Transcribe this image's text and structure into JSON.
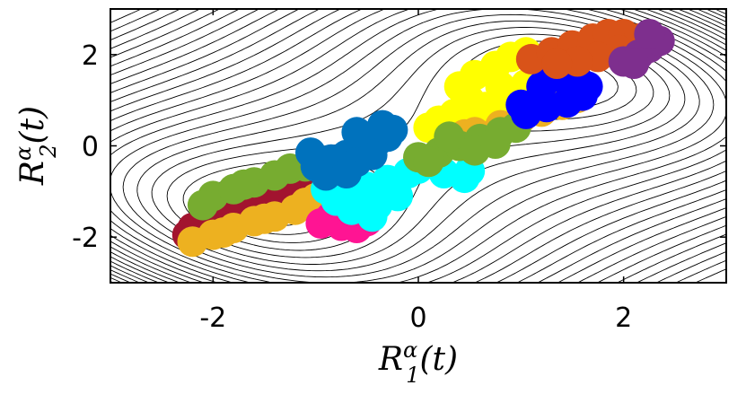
{
  "chart_data": {
    "type": "scatter",
    "title": "",
    "xlabel": "R_1^α(t)",
    "ylabel": "R_2^α(t)",
    "xlim": [
      -3,
      3
    ],
    "ylim": [
      -3,
      3
    ],
    "xticks": [
      -2,
      0,
      2
    ],
    "yticks": [
      -2,
      0,
      2
    ],
    "xtick_labels": [
      "-2",
      "0",
      "2"
    ],
    "ytick_labels": [
      "-2",
      "0",
      "2"
    ],
    "grid": false,
    "legend": "none",
    "background": "contour lines of a double-well potential with minima near (-1.6,-1.3) and (1.6,1.3)",
    "contours": {
      "color": "#000000",
      "levels": 24
    },
    "clusters": [
      {
        "color": "#A2142F",
        "points": [
          [
            -2.2,
            -1.8
          ],
          [
            -2.05,
            -1.55
          ],
          [
            -1.9,
            -1.35
          ],
          [
            -1.75,
            -1.2
          ],
          [
            -1.55,
            -1.0
          ],
          [
            -1.4,
            -0.85
          ],
          [
            -1.25,
            -0.75
          ],
          [
            -1.1,
            -0.65
          ],
          [
            -1.9,
            -1.65
          ],
          [
            -1.7,
            -1.45
          ],
          [
            -1.5,
            -1.25
          ],
          [
            -2.25,
            -1.95
          ],
          [
            -1.3,
            -1.0
          ],
          [
            -1.0,
            -0.55
          ]
        ]
      },
      {
        "color": "#EDB120",
        "points": [
          [
            -2.2,
            -2.1
          ],
          [
            -2.0,
            -1.95
          ],
          [
            -1.8,
            -1.8
          ],
          [
            -1.6,
            -1.65
          ],
          [
            -1.4,
            -1.55
          ],
          [
            -1.2,
            -1.4
          ],
          [
            -1.1,
            -1.25
          ],
          [
            -1.0,
            -1.15
          ],
          [
            -1.9,
            -1.9
          ],
          [
            -1.5,
            -1.6
          ]
        ]
      },
      {
        "color": "#77AC30",
        "points": [
          [
            -2.0,
            -1.1
          ],
          [
            -1.8,
            -0.95
          ],
          [
            -1.6,
            -0.8
          ],
          [
            -1.4,
            -0.65
          ],
          [
            -1.25,
            -0.5
          ],
          [
            -1.1,
            -0.45
          ],
          [
            -2.1,
            -1.3
          ],
          [
            -1.7,
            -0.85
          ]
        ]
      },
      {
        "color": "#FF1493",
        "points": [
          [
            -0.95,
            -1.7
          ],
          [
            -0.75,
            -1.75
          ],
          [
            -0.6,
            -1.8
          ],
          [
            -0.5,
            -1.65
          ],
          [
            -0.85,
            -1.55
          ],
          [
            -0.65,
            -1.55
          ]
        ]
      },
      {
        "color": "#00FFFF",
        "points": [
          [
            -0.9,
            -0.95
          ],
          [
            -0.7,
            -1.0
          ],
          [
            -0.5,
            -0.9
          ],
          [
            -0.3,
            -0.75
          ],
          [
            -0.6,
            -1.2
          ],
          [
            -0.4,
            -1.3
          ],
          [
            -0.2,
            -1.1
          ],
          [
            -0.45,
            -1.55
          ],
          [
            -0.65,
            -1.4
          ],
          [
            -0.25,
            -0.9
          ],
          [
            -0.1,
            -0.6
          ],
          [
            0.0,
            -0.5
          ],
          [
            0.25,
            -0.6
          ],
          [
            0.45,
            -0.7
          ],
          [
            0.5,
            -0.55
          ],
          [
            -0.8,
            -1.2
          ]
        ]
      },
      {
        "color": "#0072BD",
        "points": [
          [
            -1.0,
            -0.45
          ],
          [
            -0.85,
            -0.3
          ],
          [
            -0.7,
            -0.2
          ],
          [
            -0.55,
            -0.05
          ],
          [
            -0.4,
            0.1
          ],
          [
            -0.3,
            0.2
          ],
          [
            -0.6,
            -0.35
          ],
          [
            -0.45,
            -0.2
          ],
          [
            -0.9,
            -0.65
          ],
          [
            -0.7,
            -0.6
          ],
          [
            -0.35,
            0.45
          ],
          [
            -0.6,
            0.3
          ],
          [
            -0.25,
            0.35
          ],
          [
            -1.05,
            -0.15
          ]
        ]
      },
      {
        "color": "#FFFF00",
        "points": [
          [
            0.4,
            1.3
          ],
          [
            0.55,
            1.55
          ],
          [
            0.75,
            1.75
          ],
          [
            0.9,
            1.95
          ],
          [
            1.05,
            2.05
          ],
          [
            0.5,
            1.0
          ],
          [
            0.35,
            0.7
          ],
          [
            0.65,
            0.85
          ],
          [
            0.9,
            0.95
          ],
          [
            1.15,
            1.1
          ],
          [
            1.05,
            1.35
          ],
          [
            0.8,
            1.3
          ],
          [
            0.2,
            0.55
          ],
          [
            0.55,
            0.55
          ],
          [
            0.75,
            0.4
          ],
          [
            0.1,
            0.4
          ]
        ]
      },
      {
        "color": "#EDB120",
        "points": [
          [
            0.55,
            0.3
          ],
          [
            0.8,
            0.45
          ],
          [
            1.0,
            0.6
          ],
          [
            1.2,
            0.75
          ],
          [
            1.4,
            0.9
          ],
          [
            1.55,
            1.05
          ],
          [
            0.45,
            0.25
          ]
        ]
      },
      {
        "color": "#77AC30",
        "points": [
          [
            0.0,
            -0.25
          ],
          [
            0.2,
            -0.15
          ],
          [
            0.4,
            0.0
          ],
          [
            0.6,
            0.15
          ],
          [
            0.8,
            0.3
          ],
          [
            0.95,
            0.4
          ],
          [
            0.3,
            0.2
          ],
          [
            0.1,
            -0.35
          ],
          [
            0.55,
            -0.1
          ],
          [
            0.75,
            0.05
          ]
        ]
      },
      {
        "color": "#0000FF",
        "points": [
          [
            1.05,
            0.7
          ],
          [
            1.25,
            0.85
          ],
          [
            1.45,
            0.95
          ],
          [
            1.6,
            1.1
          ],
          [
            1.65,
            1.3
          ],
          [
            1.55,
            1.45
          ],
          [
            1.4,
            1.5
          ],
          [
            1.3,
            1.6
          ],
          [
            1.2,
            1.3
          ],
          [
            1.0,
            0.9
          ]
        ]
      },
      {
        "color": "#D95319",
        "points": [
          [
            1.1,
            1.9
          ],
          [
            1.3,
            2.05
          ],
          [
            1.5,
            2.2
          ],
          [
            1.7,
            2.35
          ],
          [
            1.85,
            2.45
          ],
          [
            2.0,
            2.45
          ],
          [
            2.15,
            2.35
          ],
          [
            1.95,
            2.1
          ],
          [
            1.75,
            1.95
          ],
          [
            1.55,
            1.85
          ],
          [
            1.35,
            1.8
          ]
        ]
      },
      {
        "color": "#7E2F8E",
        "points": [
          [
            2.0,
            1.85
          ],
          [
            2.15,
            2.0
          ],
          [
            2.25,
            2.15
          ],
          [
            2.35,
            2.3
          ],
          [
            2.25,
            2.45
          ],
          [
            2.1,
            1.8
          ]
        ]
      }
    ]
  }
}
